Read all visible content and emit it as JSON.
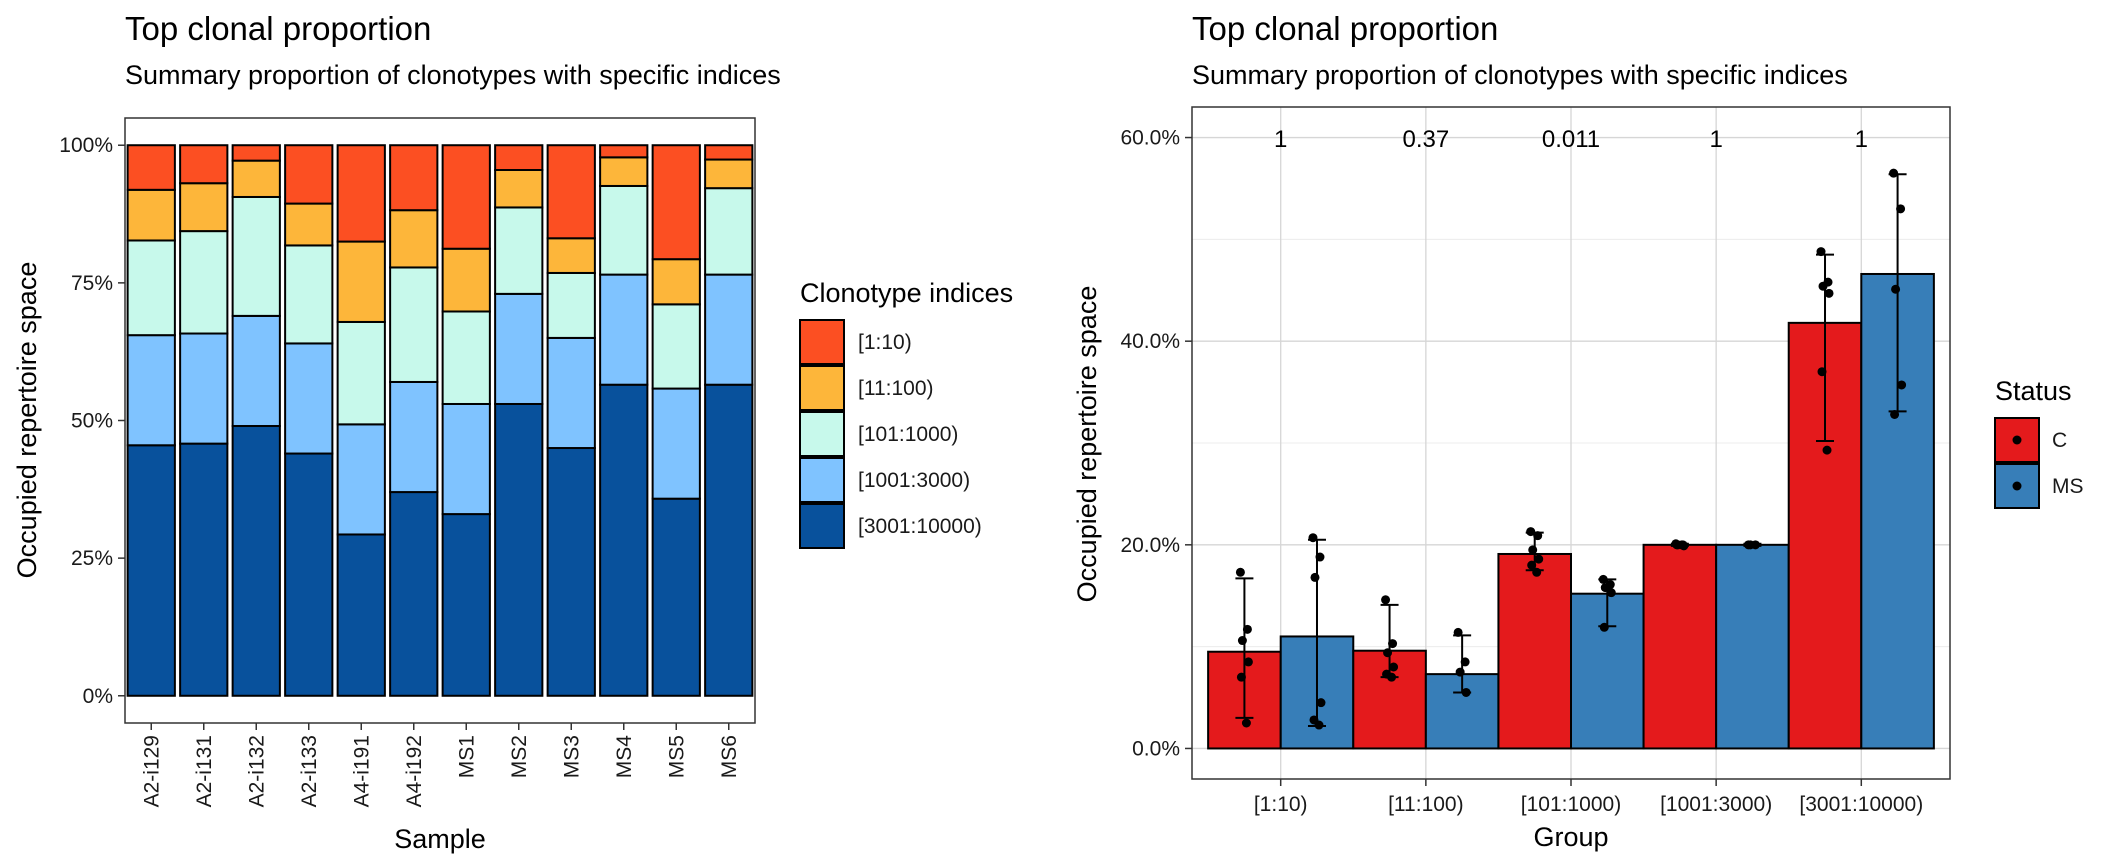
{
  "chart_data": [
    {
      "type": "bar",
      "stacked": true,
      "title": "Top clonal proportion",
      "subtitle": "Summary proportion of clonotypes with specific indices",
      "xlabel": "Sample",
      "ylabel": "Occupied repertoire space",
      "ylim": [
        0,
        1
      ],
      "yticks": [
        "0%",
        "25%",
        "50%",
        "75%",
        "100%"
      ],
      "grid": false,
      "legend": {
        "title": "Clonotype indices",
        "position": "right"
      },
      "categories": [
        "A2-i129",
        "A2-i131",
        "A2-i132",
        "A2-i133",
        "A4-i191",
        "A4-i192",
        "MS1",
        "MS2",
        "MS3",
        "MS4",
        "MS5",
        "MS6"
      ],
      "series": [
        {
          "name": "[3001:10000)",
          "color": "#08519C",
          "values": [
            0.455,
            0.458,
            0.49,
            0.44,
            0.293,
            0.37,
            0.33,
            0.53,
            0.45,
            0.565,
            0.358,
            0.565
          ]
        },
        {
          "name": "[1001:3000)",
          "color": "#7FC3FF",
          "values": [
            0.2,
            0.2,
            0.2,
            0.2,
            0.2,
            0.2,
            0.2,
            0.2,
            0.2,
            0.2,
            0.2,
            0.2
          ]
        },
        {
          "name": "[101:1000)",
          "color": "#C7F9EB",
          "values": [
            0.172,
            0.186,
            0.216,
            0.178,
            0.186,
            0.208,
            0.168,
            0.157,
            0.118,
            0.161,
            0.153,
            0.157
          ]
        },
        {
          "name": "[11:100)",
          "color": "#FDB63A",
          "values": [
            0.092,
            0.087,
            0.066,
            0.076,
            0.146,
            0.104,
            0.114,
            0.068,
            0.063,
            0.052,
            0.082,
            0.052
          ]
        },
        {
          "name": "[1:10)",
          "color": "#FC4F22",
          "values": [
            0.081,
            0.069,
            0.028,
            0.106,
            0.175,
            0.118,
            0.188,
            0.045,
            0.169,
            0.022,
            0.207,
            0.026
          ]
        }
      ]
    },
    {
      "type": "bar",
      "title": "Top clonal proportion",
      "subtitle": "Summary proportion of clonotypes with specific indices",
      "xlabel": "Group",
      "ylabel": "Occupied repertoire space",
      "ylim": [
        -0.03,
        0.63
      ],
      "yticks": [
        "0.0%",
        "20.0%",
        "40.0%",
        "60.0%"
      ],
      "grid": true,
      "legend": {
        "title": "Status",
        "position": "right"
      },
      "categories": [
        "[1:10)",
        "[11:100)",
        "[101:1000)",
        "[1001:3000)",
        "[3001:10000)"
      ],
      "p_values": [
        "1",
        "0.37",
        "0.011",
        "1",
        "1"
      ],
      "series": [
        {
          "name": "C",
          "color": "#E41A1C",
          "values": [
            0.095,
            0.096,
            0.191,
            0.2,
            0.418
          ],
          "error_low": [
            0.03,
            0.07,
            0.175,
            0.199,
            0.302
          ],
          "error_high": [
            0.167,
            0.141,
            0.212,
            0.201,
            0.485
          ],
          "points": [
            [
              0.173,
              0.117,
              0.106,
              0.085,
              0.07,
              0.025
            ],
            [
              0.146,
              0.103,
              0.094,
              0.08,
              0.073,
              0.07
            ],
            [
              0.213,
              0.209,
              0.195,
              0.186,
              0.18,
              0.173
            ],
            [
              0.201,
              0.2,
              0.2,
              0.199,
              0.2,
              0.2
            ],
            [
              0.488,
              0.458,
              0.454,
              0.447,
              0.37,
              0.293
            ]
          ]
        },
        {
          "name": "MS",
          "color": "#377EB8",
          "values": [
            0.11,
            0.073,
            0.152,
            0.2,
            0.466
          ],
          "error_low": [
            0.022,
            0.055,
            0.12,
            0.199,
            0.331
          ],
          "error_high": [
            0.205,
            0.111,
            0.166,
            0.201,
            0.564
          ],
          "points": [
            [
              0.207,
              0.188,
              0.168,
              0.045,
              0.028,
              0.023
            ],
            [
              0.114,
              0.085,
              0.075,
              0.055
            ],
            [
              0.166,
              0.161,
              0.158,
              0.153,
              0.119
            ],
            [
              0.2,
              0.2,
              0.2
            ],
            [
              0.565,
              0.53,
              0.451,
              0.357,
              0.328
            ]
          ]
        }
      ]
    }
  ]
}
